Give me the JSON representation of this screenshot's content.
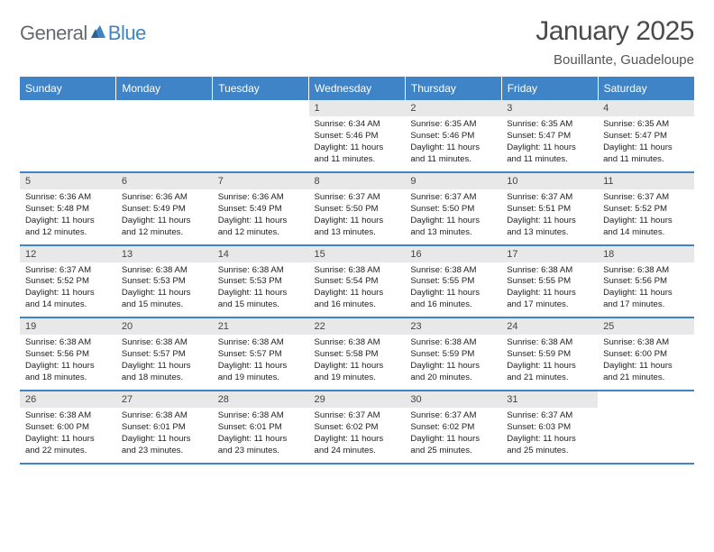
{
  "logo": {
    "text1": "General",
    "text2": "Blue"
  },
  "title": "January 2025",
  "location": "Bouillante, Guadeloupe",
  "colors": {
    "header_bg": "#3e84c6",
    "header_text": "#ffffff",
    "daynum_bg": "#e8e8e8",
    "row_border": "#3e84c6"
  },
  "days_of_week": [
    "Sunday",
    "Monday",
    "Tuesday",
    "Wednesday",
    "Thursday",
    "Friday",
    "Saturday"
  ],
  "weeks": [
    [
      null,
      null,
      null,
      {
        "n": "1",
        "sr": "6:34 AM",
        "ss": "5:46 PM",
        "dh": "11",
        "dm": "11"
      },
      {
        "n": "2",
        "sr": "6:35 AM",
        "ss": "5:46 PM",
        "dh": "11",
        "dm": "11"
      },
      {
        "n": "3",
        "sr": "6:35 AM",
        "ss": "5:47 PM",
        "dh": "11",
        "dm": "11"
      },
      {
        "n": "4",
        "sr": "6:35 AM",
        "ss": "5:47 PM",
        "dh": "11",
        "dm": "11"
      }
    ],
    [
      {
        "n": "5",
        "sr": "6:36 AM",
        "ss": "5:48 PM",
        "dh": "11",
        "dm": "12"
      },
      {
        "n": "6",
        "sr": "6:36 AM",
        "ss": "5:49 PM",
        "dh": "11",
        "dm": "12"
      },
      {
        "n": "7",
        "sr": "6:36 AM",
        "ss": "5:49 PM",
        "dh": "11",
        "dm": "12"
      },
      {
        "n": "8",
        "sr": "6:37 AM",
        "ss": "5:50 PM",
        "dh": "11",
        "dm": "13"
      },
      {
        "n": "9",
        "sr": "6:37 AM",
        "ss": "5:50 PM",
        "dh": "11",
        "dm": "13"
      },
      {
        "n": "10",
        "sr": "6:37 AM",
        "ss": "5:51 PM",
        "dh": "11",
        "dm": "13"
      },
      {
        "n": "11",
        "sr": "6:37 AM",
        "ss": "5:52 PM",
        "dh": "11",
        "dm": "14"
      }
    ],
    [
      {
        "n": "12",
        "sr": "6:37 AM",
        "ss": "5:52 PM",
        "dh": "11",
        "dm": "14"
      },
      {
        "n": "13",
        "sr": "6:38 AM",
        "ss": "5:53 PM",
        "dh": "11",
        "dm": "15"
      },
      {
        "n": "14",
        "sr": "6:38 AM",
        "ss": "5:53 PM",
        "dh": "11",
        "dm": "15"
      },
      {
        "n": "15",
        "sr": "6:38 AM",
        "ss": "5:54 PM",
        "dh": "11",
        "dm": "16"
      },
      {
        "n": "16",
        "sr": "6:38 AM",
        "ss": "5:55 PM",
        "dh": "11",
        "dm": "16"
      },
      {
        "n": "17",
        "sr": "6:38 AM",
        "ss": "5:55 PM",
        "dh": "11",
        "dm": "17"
      },
      {
        "n": "18",
        "sr": "6:38 AM",
        "ss": "5:56 PM",
        "dh": "11",
        "dm": "17"
      }
    ],
    [
      {
        "n": "19",
        "sr": "6:38 AM",
        "ss": "5:56 PM",
        "dh": "11",
        "dm": "18"
      },
      {
        "n": "20",
        "sr": "6:38 AM",
        "ss": "5:57 PM",
        "dh": "11",
        "dm": "18"
      },
      {
        "n": "21",
        "sr": "6:38 AM",
        "ss": "5:57 PM",
        "dh": "11",
        "dm": "19"
      },
      {
        "n": "22",
        "sr": "6:38 AM",
        "ss": "5:58 PM",
        "dh": "11",
        "dm": "19"
      },
      {
        "n": "23",
        "sr": "6:38 AM",
        "ss": "5:59 PM",
        "dh": "11",
        "dm": "20"
      },
      {
        "n": "24",
        "sr": "6:38 AM",
        "ss": "5:59 PM",
        "dh": "11",
        "dm": "21"
      },
      {
        "n": "25",
        "sr": "6:38 AM",
        "ss": "6:00 PM",
        "dh": "11",
        "dm": "21"
      }
    ],
    [
      {
        "n": "26",
        "sr": "6:38 AM",
        "ss": "6:00 PM",
        "dh": "11",
        "dm": "22"
      },
      {
        "n": "27",
        "sr": "6:38 AM",
        "ss": "6:01 PM",
        "dh": "11",
        "dm": "23"
      },
      {
        "n": "28",
        "sr": "6:38 AM",
        "ss": "6:01 PM",
        "dh": "11",
        "dm": "23"
      },
      {
        "n": "29",
        "sr": "6:37 AM",
        "ss": "6:02 PM",
        "dh": "11",
        "dm": "24"
      },
      {
        "n": "30",
        "sr": "6:37 AM",
        "ss": "6:02 PM",
        "dh": "11",
        "dm": "25"
      },
      {
        "n": "31",
        "sr": "6:37 AM",
        "ss": "6:03 PM",
        "dh": "11",
        "dm": "25"
      },
      null
    ]
  ]
}
